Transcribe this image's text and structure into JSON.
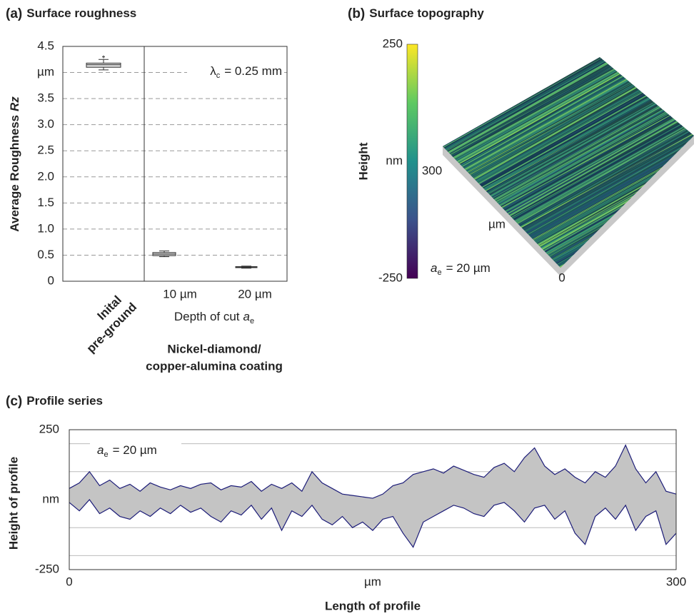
{
  "chart_data": [
    {
      "type": "box",
      "panel": "(a)",
      "title": "Surface roughness",
      "ylabel": "Average Roughness",
      "ylabel_var": "Rz",
      "ylim": [
        0,
        4.5
      ],
      "yticks": [
        0,
        0.5,
        {
          "value": 1,
          "label": "1.0"
        },
        1.5,
        {
          "value": 2,
          "label": "2.0"
        },
        2.5,
        {
          "value": 3,
          "label": "3.0"
        },
        3.5,
        {
          "value": 4,
          "label": "µm"
        },
        4.5
      ],
      "grid": "dashed",
      "categories": [
        [
          "Inital",
          "pre-ground"
        ],
        "10 µm",
        "20 µm"
      ],
      "boxes": [
        {
          "whislo": 4.05,
          "q1": 4.1,
          "med": 4.15,
          "q3": 4.18,
          "whishi": 4.25,
          "fliers": [
            4.3
          ]
        },
        {
          "whislo": 0.47,
          "q1": 0.49,
          "med": 0.52,
          "q3": 0.55,
          "whishi": 0.58,
          "fliers": []
        },
        {
          "whislo": 0.25,
          "q1": 0.26,
          "med": 0.27,
          "q3": 0.28,
          "whishi": 0.29,
          "fliers": []
        }
      ],
      "box_color": "#d9d9d9",
      "xlabel": "Depth of cut",
      "xlabel_var": "a",
      "xlabel_sub": "e",
      "group_label": [
        "Nickel-diamond/",
        "copper-alumina coating"
      ],
      "annotation": {
        "symbol": "λ",
        "sub": "c",
        "text": "= 0.25 mm"
      }
    },
    {
      "type": "surface",
      "panel": "(b)",
      "title": "Surface topography",
      "zlabel": "Height",
      "zlim": [
        -250,
        250
      ],
      "zticks": [
        -250,
        {
          "value": 0,
          "label": "nm"
        },
        250
      ],
      "colormap": [
        "#440154",
        "#3b528b",
        "#21918c",
        "#5ec962",
        "#fde725"
      ],
      "xlim": [
        0,
        300
      ],
      "xticks": [
        0,
        {
          "value": 150,
          "label": "µm"
        },
        300
      ],
      "annotation": {
        "var": "a",
        "sub": "e",
        "text": "= 20 µm"
      }
    },
    {
      "type": "line",
      "panel": "(c)",
      "title": "Profile series",
      "ylabel": "Height of profile",
      "xlabel": "Length of profile",
      "xlim": [
        0,
        300
      ],
      "xticks": [
        0,
        {
          "value": 150,
          "label": "µm"
        },
        300
      ],
      "ylim": [
        -250,
        250
      ],
      "yticks": [
        -250,
        {
          "value": 0,
          "label": "nm"
        },
        250
      ],
      "ygrid": [
        -200,
        -100,
        100,
        200
      ],
      "zero_line": true,
      "fill": "#c4c4c4",
      "x": [
        0,
        5,
        10,
        15,
        20,
        25,
        30,
        35,
        40,
        45,
        50,
        55,
        60,
        65,
        70,
        75,
        80,
        85,
        90,
        95,
        100,
        105,
        110,
        115,
        120,
        125,
        130,
        135,
        140,
        145,
        150,
        155,
        160,
        165,
        170,
        175,
        180,
        185,
        190,
        195,
        200,
        205,
        210,
        215,
        220,
        225,
        230,
        235,
        240,
        245,
        250,
        255,
        260,
        265,
        270,
        275,
        280,
        285,
        290,
        295,
        300
      ],
      "series": [
        {
          "color": "#1c1c78",
          "values": [
            40,
            60,
            100,
            50,
            70,
            40,
            55,
            30,
            60,
            45,
            35,
            50,
            40,
            55,
            60,
            35,
            50,
            45,
            65,
            30,
            55,
            40,
            60,
            30,
            100,
            60,
            40,
            20,
            15,
            10,
            5,
            20,
            50,
            60,
            90,
            100,
            110,
            95,
            120,
            105,
            90,
            80,
            115,
            130,
            100,
            150,
            185,
            120,
            90,
            110,
            80,
            60,
            100,
            80,
            120,
            195,
            110,
            60,
            100,
            30,
            20
          ]
        },
        {
          "color": "#1c1c78",
          "values": [
            -10,
            -40,
            0,
            -50,
            -30,
            -60,
            -70,
            -40,
            -60,
            -30,
            -50,
            -20,
            -45,
            -30,
            -60,
            -80,
            -40,
            -55,
            -20,
            -70,
            -30,
            -110,
            -40,
            -60,
            -20,
            -70,
            -90,
            -60,
            -100,
            -80,
            -110,
            -70,
            -60,
            -120,
            -170,
            -80,
            -60,
            -40,
            -20,
            -30,
            -50,
            -60,
            -20,
            -10,
            -40,
            -80,
            -30,
            -20,
            -70,
            -40,
            -120,
            -160,
            -60,
            -30,
            -70,
            -20,
            -110,
            -60,
            -40,
            -160,
            -120
          ]
        }
      ],
      "annotation": {
        "var": "a",
        "sub": "e",
        "text": "= 20 µm"
      }
    }
  ]
}
